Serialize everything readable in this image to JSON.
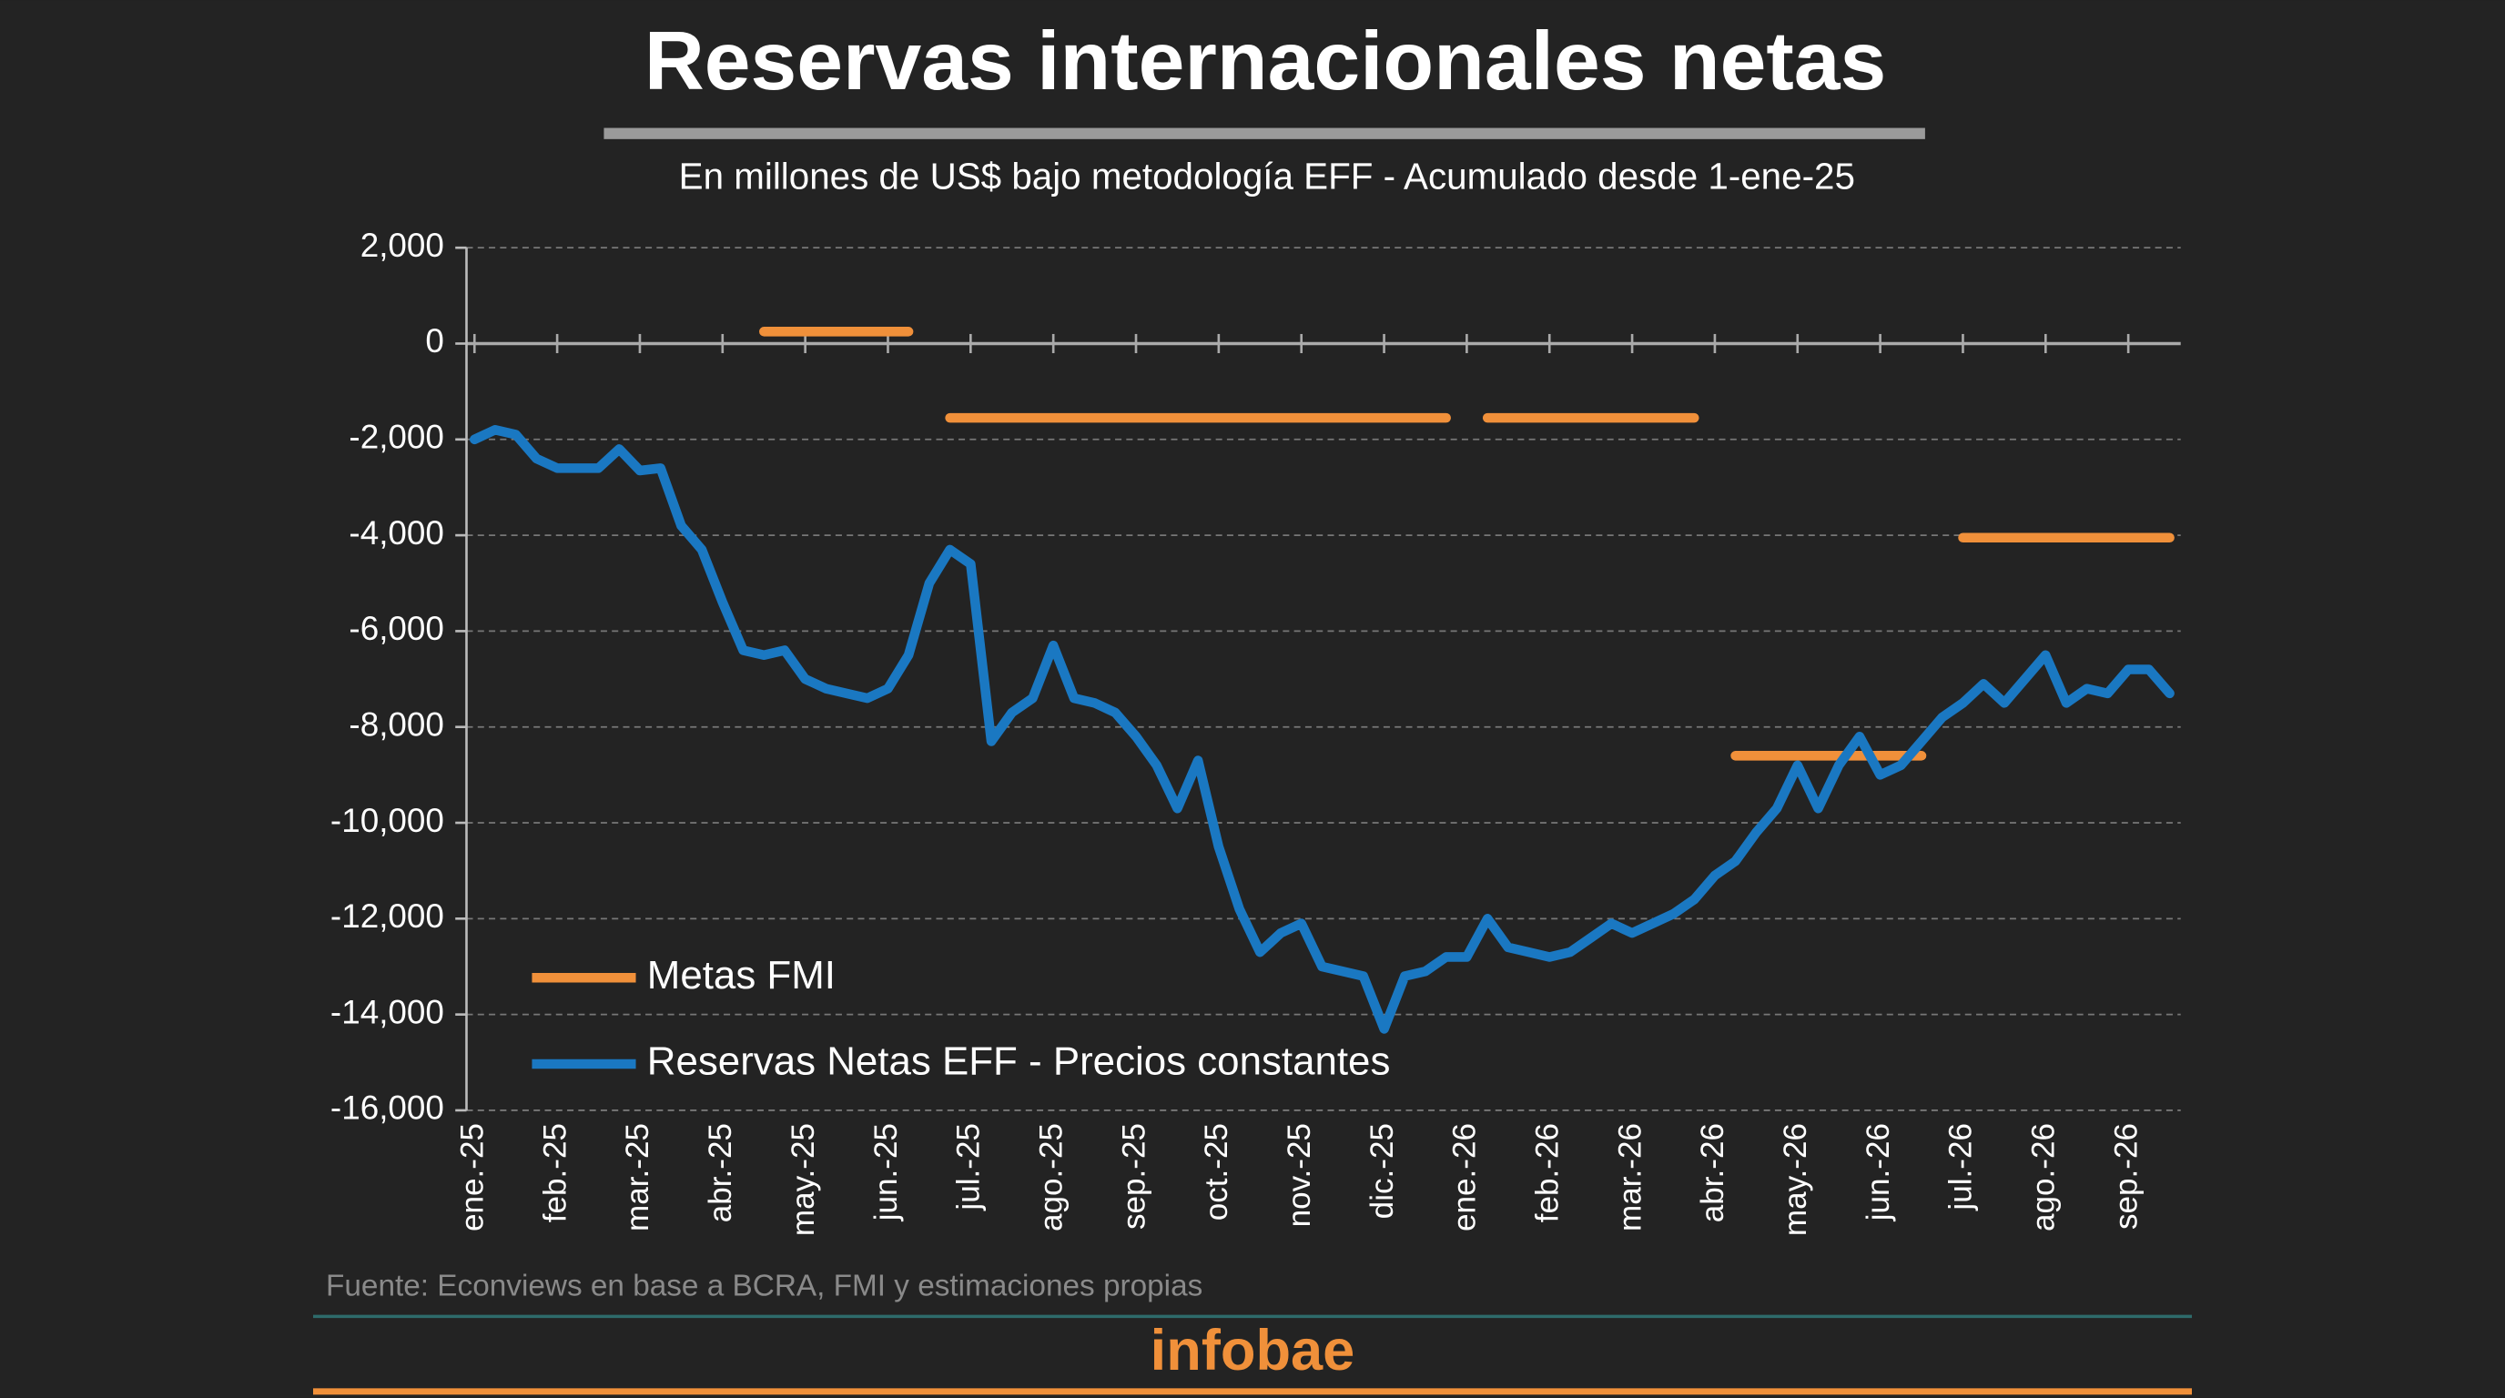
{
  "chart_data": {
    "type": "line",
    "title": "Reservas internacionales netas",
    "subtitle": "En millones de US$ bajo metodología EFF - Acumulado desde 1-ene-25",
    "source": "Fuente: Econviews en base a BCRA, FMI y estimaciones propias",
    "brand": "infobae",
    "categories": [
      "ene.-25",
      null,
      null,
      null,
      "feb.-25",
      null,
      null,
      null,
      "mar.-25",
      null,
      null,
      null,
      "abr.-25",
      null,
      null,
      null,
      "may.-25",
      null,
      null,
      null,
      "jun.-25",
      null,
      null,
      null,
      "jul.-25",
      null,
      null,
      null,
      "ago.-25",
      null,
      null,
      null,
      "sep.-25",
      null,
      null,
      null,
      "oct.-25",
      null,
      null,
      null,
      "nov.-25",
      null,
      null,
      null,
      "dic.-25",
      null,
      null,
      null,
      "ene.-26",
      null,
      null,
      null,
      "feb.-26",
      null,
      null,
      null,
      "mar.-26",
      null,
      null,
      null,
      "abr.-26",
      null,
      null,
      null,
      "may.-26",
      null,
      null,
      null,
      "jun.-26",
      null,
      null,
      null,
      "jul.-26",
      null,
      null,
      null,
      "ago.-26",
      null,
      null,
      null,
      "sep.-26",
      null,
      null
    ],
    "series": [
      {
        "name": "Metas FMI",
        "color": "#f0903a",
        "values": [
          null,
          null,
          null,
          null,
          null,
          null,
          null,
          null,
          null,
          null,
          null,
          null,
          null,
          null,
          250,
          250,
          250,
          250,
          250,
          250,
          250,
          250,
          null,
          -1550,
          -1550,
          -1550,
          -1550,
          -1550,
          -1550,
          -1550,
          -1550,
          -1550,
          -1550,
          -1550,
          -1550,
          -1550,
          -1550,
          -1550,
          -1550,
          -1550,
          -1550,
          -1550,
          -1550,
          -1550,
          -1550,
          -1550,
          -1550,
          -1550,
          null,
          -1550,
          -1550,
          -1550,
          -1550,
          -1550,
          -1550,
          -1550,
          -1550,
          -1550,
          -1550,
          -1550,
          null,
          -8600,
          -8600,
          -8600,
          -8600,
          -8600,
          -8600,
          -8600,
          -8600,
          -8600,
          -8600,
          null,
          -4050,
          -4050,
          -4050,
          -4050,
          -4050,
          -4050,
          -4050,
          -4050,
          -4050,
          -4050,
          -4050
        ]
      },
      {
        "name": "Reservas Netas EFF - Precios constantes",
        "color": "#1a78c2",
        "values": [
          -2000,
          -1800,
          -1900,
          -2400,
          -2600,
          -2600,
          -2600,
          -2200,
          -2650,
          -2600,
          -3800,
          -4300,
          -5400,
          -6400,
          -6500,
          -6400,
          -7000,
          -7200,
          -7300,
          -7400,
          -7200,
          -6500,
          -5000,
          -4300,
          -4600,
          -8300,
          -7700,
          -7400,
          -6300,
          -7400,
          -7500,
          -7700,
          -8200,
          -8800,
          -9700,
          -8700,
          -10500,
          -11800,
          -12700,
          -12300,
          -12100,
          -13000,
          -13100,
          -13200,
          -14300,
          -13200,
          -13100,
          -12800,
          -12800,
          -12000,
          -12600,
          -12700,
          -12800,
          -12700,
          -12400,
          -12100,
          -12300,
          -12100,
          -11900,
          -11600,
          -11100,
          -10800,
          -10200,
          -9700,
          -8800,
          -9700,
          -8800,
          -8200,
          -9000,
          -8800,
          -8300,
          -7800,
          -7500,
          -7100,
          -7500,
          -7000,
          -6500,
          -7500,
          -7200,
          -7300,
          -6800,
          -6800,
          -7300
        ]
      }
    ],
    "ylim": [
      -16000,
      2000
    ],
    "yticks": [
      {
        "value": 2000,
        "label": "2,000"
      },
      0,
      {
        "value": -2000,
        "label": "-2,000"
      },
      {
        "value": -4000,
        "label": "-4,000"
      },
      {
        "value": -6000,
        "label": "-6,000"
      },
      {
        "value": -8000,
        "label": "-8,000"
      },
      {
        "value": -10000,
        "label": "-10,000"
      },
      {
        "value": -12000,
        "label": "-12,000"
      },
      {
        "value": -14000,
        "label": "-14,000"
      },
      {
        "value": -16000,
        "label": "-16,000"
      }
    ],
    "grid": true,
    "legend": "lower-left"
  }
}
